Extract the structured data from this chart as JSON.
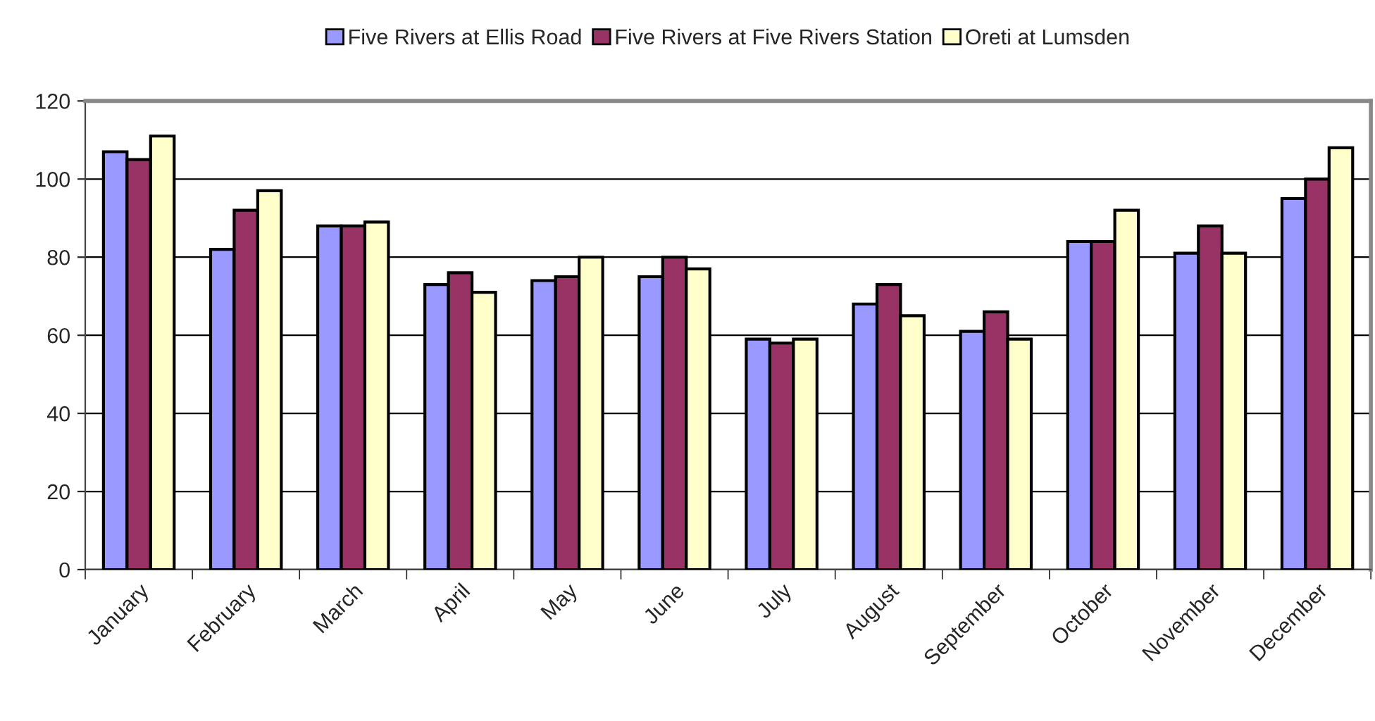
{
  "chart_data": {
    "type": "bar",
    "categories": [
      "January",
      "February",
      "March",
      "April",
      "May",
      "June",
      "July",
      "August",
      "September",
      "October",
      "November",
      "December"
    ],
    "series": [
      {
        "name": "Five Rivers at Ellis Road",
        "color": "#9999ff",
        "values": [
          107,
          82,
          88,
          73,
          74,
          75,
          59,
          68,
          61,
          84,
          81,
          95
        ]
      },
      {
        "name": "Five Rivers at Five Rivers Station",
        "color": "#993366",
        "values": [
          105,
          92,
          88,
          76,
          75,
          80,
          58,
          73,
          66,
          84,
          88,
          100
        ]
      },
      {
        "name": "Oreti at Lumsden",
        "color": "#ffffcc",
        "values": [
          111,
          97,
          89,
          71,
          80,
          77,
          59,
          65,
          59,
          92,
          81,
          108
        ]
      }
    ],
    "ylim": [
      0,
      120
    ],
    "yticks": [
      0,
      20,
      40,
      60,
      80,
      100,
      120
    ],
    "grid": "y",
    "legend": "top"
  }
}
